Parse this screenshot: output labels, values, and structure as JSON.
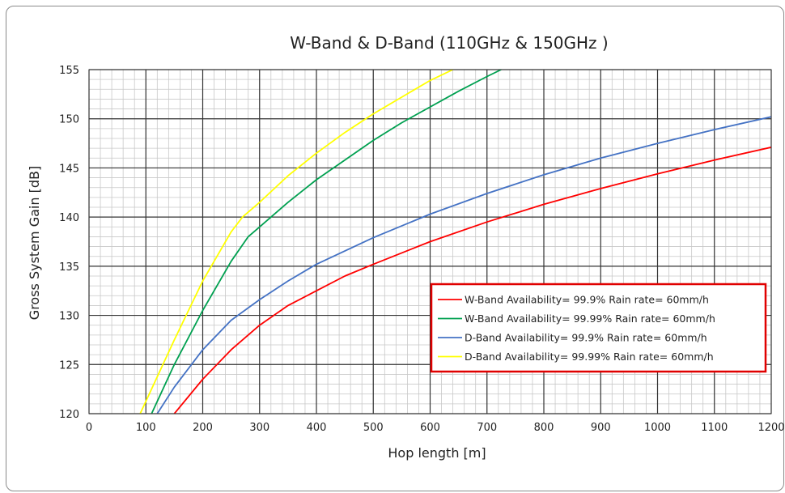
{
  "chart_data": {
    "type": "line",
    "title": "W-Band & D-Band (110GHz & 150GHz )",
    "xlabel": "Hop length [m]",
    "ylabel": "Gross System Gain [dB]",
    "xlim": [
      0,
      1200
    ],
    "ylim": [
      120,
      155
    ],
    "xticks": [
      0,
      100,
      200,
      300,
      400,
      500,
      600,
      700,
      800,
      900,
      1000,
      1100,
      1200
    ],
    "yticks": [
      120,
      125,
      130,
      135,
      140,
      145,
      150,
      155
    ],
    "grid": true,
    "legend_position": "center-right",
    "legend_border_color": "#e00000",
    "series": [
      {
        "name": "W-Band Availability= 99.9% Rain rate= 60mm/h",
        "color": "#ff0000",
        "x": [
          150,
          200,
          250,
          300,
          350,
          400,
          450,
          500,
          600,
          700,
          800,
          900,
          1000,
          1100,
          1200
        ],
        "y": [
          120.0,
          123.5,
          126.5,
          129.0,
          131.0,
          132.5,
          134.0,
          135.2,
          137.5,
          139.5,
          141.3,
          142.9,
          144.4,
          145.8,
          147.1
        ]
      },
      {
        "name": "W-Band Availability= 99.99% Rain rate= 60mm/h",
        "color": "#00a050",
        "x": [
          110,
          150,
          200,
          250,
          280,
          300,
          350,
          400,
          450,
          500,
          550,
          600,
          650,
          700,
          725
        ],
        "y": [
          120.0,
          125.0,
          130.5,
          135.5,
          138.0,
          139.0,
          141.5,
          143.8,
          145.8,
          147.8,
          149.6,
          151.2,
          152.8,
          154.3,
          155.0
        ]
      },
      {
        "name": "D-Band Availability= 99.9% Rain rate= 60mm/h",
        "color": "#4472c4",
        "x": [
          120,
          150,
          200,
          250,
          300,
          350,
          400,
          500,
          600,
          700,
          800,
          900,
          1000,
          1100,
          1200
        ],
        "y": [
          120.0,
          122.7,
          126.5,
          129.5,
          131.6,
          133.5,
          135.2,
          137.9,
          140.3,
          142.4,
          144.3,
          146.0,
          147.5,
          148.9,
          150.2
        ]
      },
      {
        "name": "D-Band Availability= 99.99% Rain rate= 60mm/h",
        "color": "#ffff00",
        "x": [
          90,
          150,
          200,
          250,
          270,
          300,
          350,
          400,
          450,
          500,
          550,
          600,
          640
        ],
        "y": [
          120.0,
          127.5,
          133.5,
          138.5,
          140.0,
          141.5,
          144.2,
          146.5,
          148.6,
          150.5,
          152.2,
          153.9,
          155.0
        ]
      }
    ]
  }
}
